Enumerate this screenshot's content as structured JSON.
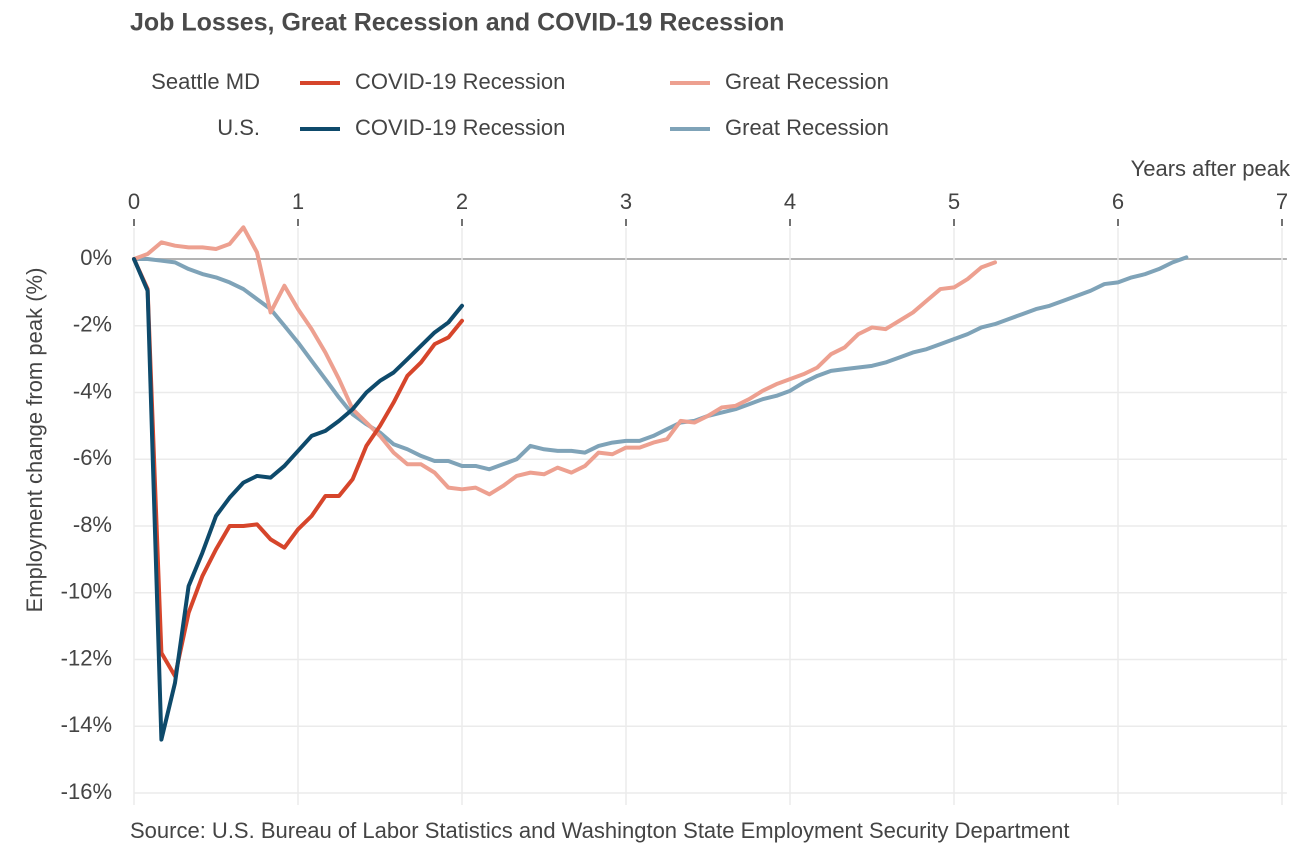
{
  "chart_data": {
    "type": "line",
    "title": "Job Losses, Great Recession and COVID-19 Recession",
    "x_label": "Years after peak",
    "y_label": "Employment change from peak (%)",
    "source": "Source: U.S. Bureau of Labor Statistics and Washington State Employment Security Department",
    "xlim": [
      0,
      7.03
    ],
    "ylim": [
      -16.36,
      0.93
    ],
    "xticks": [
      0,
      1,
      2,
      3,
      4,
      5,
      6,
      7
    ],
    "yticks": [
      {
        "value": 0,
        "label": "0%"
      },
      {
        "value": -2,
        "label": "-2%"
      },
      {
        "value": -4,
        "label": "-4%"
      },
      {
        "value": -6,
        "label": "-6%"
      },
      {
        "value": -8,
        "label": "-8%"
      },
      {
        "value": -10,
        "label": "-10%"
      },
      {
        "value": -12,
        "label": "-12%"
      },
      {
        "value": -14,
        "label": "-14%"
      },
      {
        "value": -16,
        "label": "-16%"
      }
    ],
    "grid": true,
    "x": [
      0,
      0.083,
      0.167,
      0.25,
      0.333,
      0.417,
      0.5,
      0.583,
      0.667,
      0.75,
      0.833,
      0.917,
      1,
      1.083,
      1.167,
      1.25,
      1.333,
      1.417,
      1.5,
      1.583,
      1.667,
      1.75,
      1.833,
      1.917,
      2,
      2.083,
      2.167,
      2.25,
      2.333,
      2.417,
      2.5,
      2.583,
      2.667,
      2.75,
      2.833,
      2.917,
      3,
      3.083,
      3.167,
      3.25,
      3.333,
      3.417,
      3.5,
      3.583,
      3.667,
      3.75,
      3.833,
      3.917,
      4,
      4.083,
      4.167,
      4.25,
      4.333,
      4.417,
      4.5,
      4.583,
      4.667,
      4.75,
      4.833,
      4.917,
      5,
      5.083,
      5.167,
      5.25,
      5.333,
      5.417,
      5.5,
      5.583,
      5.667,
      5.75,
      5.833,
      5.917,
      6,
      6.083,
      6.167,
      6.25,
      6.333,
      6.417
    ],
    "series": [
      {
        "group": "Seattle MD",
        "name": "COVID-19 Recession",
        "color": "#d6452b",
        "values": [
          0,
          -0.9,
          -11.8,
          -12.5,
          -10.6,
          -9.5,
          -8.7,
          -8.0,
          -8.0,
          -7.95,
          -8.4,
          -8.65,
          -8.1,
          -7.7,
          -7.1,
          -7.1,
          -6.6,
          -5.6,
          -5.0,
          -4.3,
          -3.5,
          -3.1,
          -2.55,
          -2.35,
          -1.85,
          null,
          null,
          null,
          null,
          null,
          null,
          null,
          null,
          null,
          null,
          null,
          null,
          null,
          null,
          null,
          null,
          null,
          null,
          null,
          null,
          null,
          null,
          null,
          null,
          null,
          null,
          null,
          null,
          null,
          null,
          null,
          null,
          null,
          null,
          null,
          null,
          null,
          null,
          null,
          null,
          null,
          null,
          null,
          null,
          null,
          null,
          null,
          null,
          null,
          null,
          null,
          null,
          null
        ]
      },
      {
        "group": "Seattle MD",
        "name": "Great Recession",
        "color": "#eda090",
        "values": [
          0,
          0.15,
          0.5,
          0.4,
          0.35,
          0.35,
          0.3,
          0.45,
          0.95,
          0.2,
          -1.6,
          -0.8,
          -1.5,
          -2.1,
          -2.8,
          -3.6,
          -4.5,
          -4.9,
          -5.3,
          -5.8,
          -6.15,
          -6.15,
          -6.4,
          -6.85,
          -6.9,
          -6.85,
          -7.05,
          -6.8,
          -6.5,
          -6.4,
          -6.45,
          -6.25,
          -6.4,
          -6.2,
          -5.8,
          -5.85,
          -5.65,
          -5.65,
          -5.5,
          -5.4,
          -4.85,
          -4.9,
          -4.7,
          -4.45,
          -4.4,
          -4.2,
          -3.95,
          -3.75,
          -3.6,
          -3.45,
          -3.25,
          -2.85,
          -2.65,
          -2.25,
          -2.05,
          -2.1,
          -1.85,
          -1.6,
          -1.25,
          -0.9,
          -0.85,
          -0.6,
          -0.25,
          -0.1,
          null,
          null,
          null,
          null,
          null,
          null,
          null,
          null,
          null,
          null,
          null,
          null,
          null,
          null
        ]
      },
      {
        "group": "U.S.",
        "name": "COVID-19 Recession",
        "color": "#0e4a6b",
        "values": [
          0,
          -0.95,
          -14.4,
          -12.7,
          -9.8,
          -8.8,
          -7.7,
          -7.15,
          -6.7,
          -6.5,
          -6.55,
          -6.2,
          -5.75,
          -5.3,
          -5.15,
          -4.85,
          -4.5,
          -4.0,
          -3.65,
          -3.4,
          -3.0,
          -2.6,
          -2.2,
          -1.9,
          -1.4,
          null,
          null,
          null,
          null,
          null,
          null,
          null,
          null,
          null,
          null,
          null,
          null,
          null,
          null,
          null,
          null,
          null,
          null,
          null,
          null,
          null,
          null,
          null,
          null,
          null,
          null,
          null,
          null,
          null,
          null,
          null,
          null,
          null,
          null,
          null,
          null,
          null,
          null,
          null,
          null,
          null,
          null,
          null,
          null,
          null,
          null,
          null,
          null,
          null,
          null,
          null,
          null,
          null
        ]
      },
      {
        "group": "U.S.",
        "name": "Great Recession",
        "color": "#7fa3b8",
        "values": [
          0,
          0.0,
          -0.05,
          -0.1,
          -0.3,
          -0.45,
          -0.55,
          -0.7,
          -0.9,
          -1.2,
          -1.5,
          -2.0,
          -2.5,
          -3.05,
          -3.6,
          -4.15,
          -4.65,
          -4.95,
          -5.2,
          -5.55,
          -5.7,
          -5.9,
          -6.05,
          -6.05,
          -6.2,
          -6.2,
          -6.3,
          -6.15,
          -6.0,
          -5.6,
          -5.7,
          -5.75,
          -5.75,
          -5.8,
          -5.6,
          -5.5,
          -5.45,
          -5.45,
          -5.3,
          -5.1,
          -4.9,
          -4.85,
          -4.7,
          -4.6,
          -4.5,
          -4.35,
          -4.2,
          -4.1,
          -3.95,
          -3.7,
          -3.5,
          -3.35,
          -3.3,
          -3.25,
          -3.2,
          -3.1,
          -2.95,
          -2.8,
          -2.7,
          -2.55,
          -2.4,
          -2.25,
          -2.05,
          -1.95,
          -1.8,
          -1.65,
          -1.5,
          -1.4,
          -1.25,
          -1.1,
          -0.95,
          -0.75,
          -0.7,
          -0.55,
          -0.45,
          -0.3,
          -0.1,
          0.05
        ]
      }
    ]
  }
}
